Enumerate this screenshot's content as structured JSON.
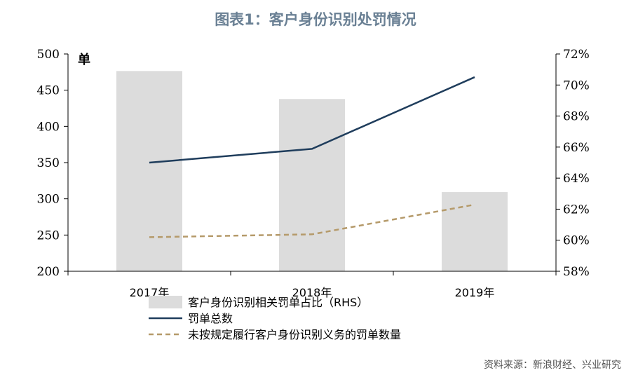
{
  "title": "图表1：客户身份识别处罚情况",
  "source": "资料来源：新浪财经、兴业研究",
  "chart_data": {
    "type": "bar+line",
    "categories": [
      "2017年",
      "2018年",
      "2019年"
    ],
    "left_axis": {
      "unit_label": "单",
      "ylim": [
        200,
        500
      ],
      "ticks": [
        "200",
        "250",
        "300",
        "350",
        "400",
        "450",
        "500"
      ]
    },
    "right_axis": {
      "ylim": [
        58,
        72
      ],
      "ticks": [
        "58%",
        "60%",
        "62%",
        "64%",
        "66%",
        "68%",
        "70%",
        "72%"
      ]
    },
    "series": [
      {
        "name": "客户身份识别相关罚单占比（RHS）",
        "kind": "bar",
        "axis": "right",
        "values": [
          70.9,
          69.1,
          63.1
        ],
        "color": "#dcdcdc"
      },
      {
        "name": "罚单总数",
        "kind": "line",
        "axis": "left",
        "values": [
          350,
          369,
          468
        ],
        "color": "#1f3d5c"
      },
      {
        "name": "未按规定履行客户身份识别义务的罚单数量",
        "kind": "dashed-line",
        "axis": "left",
        "values": [
          247,
          251,
          292
        ],
        "color": "#b59a6a"
      }
    ],
    "grid": false,
    "legend_position": "bottom-center"
  }
}
